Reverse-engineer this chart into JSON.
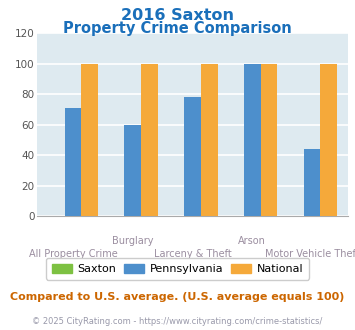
{
  "title_line1": "2016 Saxton",
  "title_line2": "Property Crime Comparison",
  "categories": [
    "All Property Crime",
    "Burglary",
    "Larceny & Theft",
    "Arson",
    "Motor Vehicle Theft"
  ],
  "category_top_labels": [
    "",
    "Burglary",
    "",
    "Arson",
    ""
  ],
  "category_bot_labels": [
    "All Property Crime",
    "",
    "Larceny & Theft",
    "",
    "Motor Vehicle Theft"
  ],
  "saxton": [
    0,
    0,
    0,
    0,
    0
  ],
  "pennsylvania": [
    71,
    60,
    78,
    100,
    44
  ],
  "national": [
    100,
    100,
    100,
    100,
    100
  ],
  "saxton_color": "#7dc142",
  "pennsylvania_color": "#4d8fcc",
  "national_color": "#f5a93a",
  "ylim": [
    0,
    120
  ],
  "yticks": [
    0,
    20,
    40,
    60,
    80,
    100,
    120
  ],
  "plot_bg": "#deeaf0",
  "grid_color": "#ffffff",
  "title_color": "#1a6fba",
  "axis_label_color": "#9b8ea0",
  "legend_labels": [
    "Saxton",
    "Pennsylvania",
    "National"
  ],
  "footer_text": "Compared to U.S. average. (U.S. average equals 100)",
  "copyright_text": "© 2025 CityRating.com - https://www.cityrating.com/crime-statistics/",
  "footer_color": "#cc6600",
  "copyright_color": "#9999aa",
  "bar_width": 0.28
}
